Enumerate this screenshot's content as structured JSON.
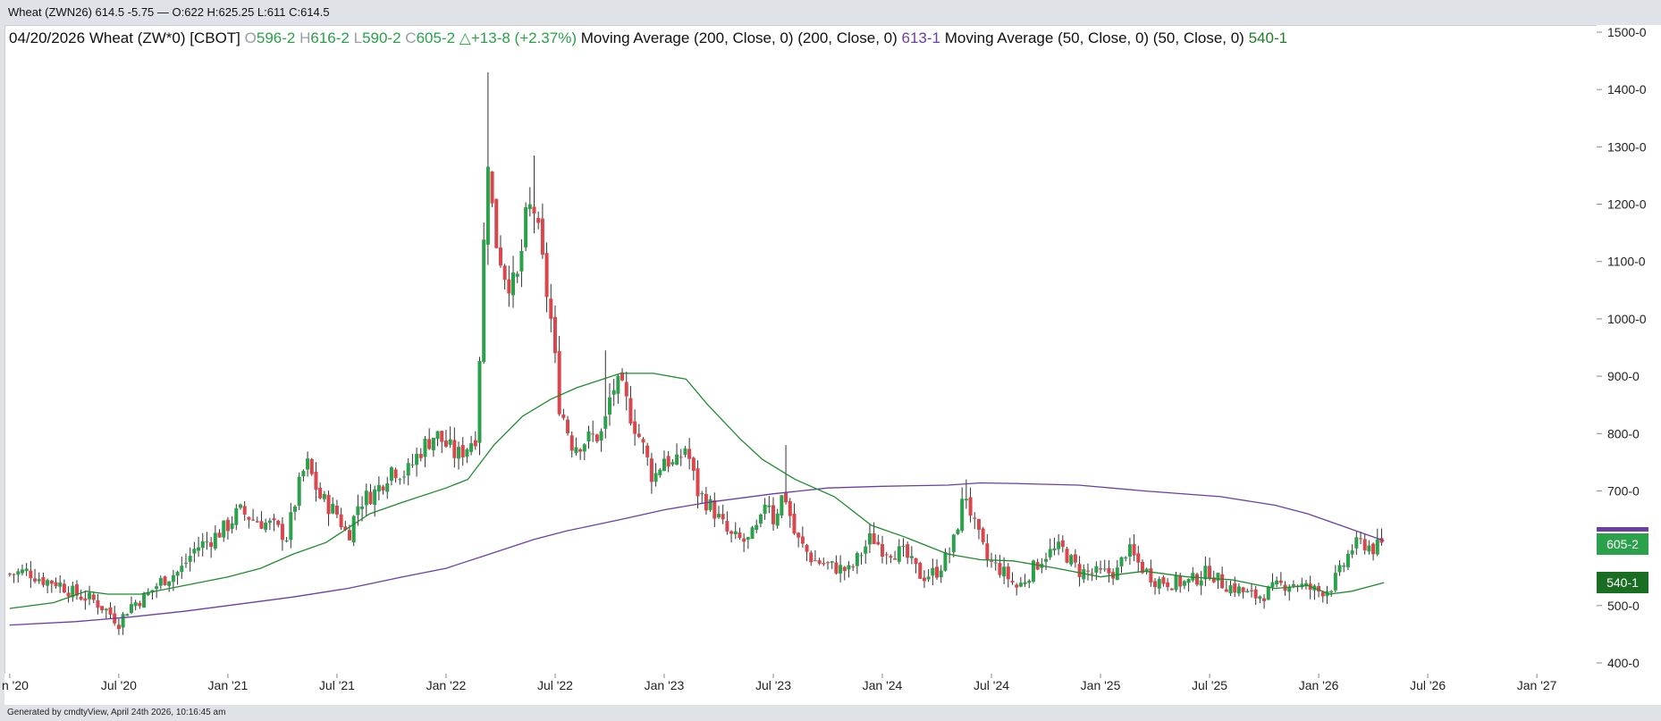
{
  "header": {
    "quote_line": "Wheat (ZWN26) 614.5 -5.75 — O:622 H:625.25 L:611 C:614.5"
  },
  "legend": {
    "date": "04/20/2026",
    "symbol": "Wheat (ZW*0) [CBOT]",
    "open_prefix": "O",
    "open": "596-2",
    "high_prefix": "H",
    "high": "616-2",
    "low_prefix": "L",
    "low": "590-2",
    "close_prefix": "C",
    "close": "605-2",
    "change": "△+13-8 (+2.37%)",
    "ma200_label": "Moving Average (200, Close, 0)  (200, Close, 0)",
    "ma200_value": "613-1",
    "ma50_label": "Moving Average (50, Close, 0)  (50, Close, 0)",
    "ma50_value": "540-1"
  },
  "footer": {
    "text": "Generated by cmdtyView, April 24th 2026, 10:16:45 am"
  },
  "colors": {
    "up": "#2aa14a",
    "down": "#d9464b",
    "ma200": "#6a3fa0",
    "ma50": "#1f8a2e",
    "price_tag": "#2aa14a",
    "ma50_tag": "#1a6e24",
    "ma200_tag": "#6a3fa0"
  },
  "chart_data": {
    "type": "candlestick",
    "title": "Wheat (ZW*0) [CBOT]",
    "x_ticks": [
      "n '20",
      "Jul '20",
      "Jan '21",
      "Jul '21",
      "Jan '22",
      "Jul '22",
      "Jan '23",
      "Jul '23",
      "Jan '24",
      "Jul '24",
      "Jan '25",
      "Jul '25",
      "Jan '26",
      "Jul '26",
      "Jan '27"
    ],
    "y_ticks": [
      "400-0",
      "500-0",
      "600-0",
      "700-0",
      "800-0",
      "900-0",
      "1000-0",
      "1100-0",
      "1200-0",
      "1300-0",
      "1400-0",
      "1500-0"
    ],
    "ylim": [
      400,
      1500
    ],
    "xlim": [
      2019.98,
      2027.27
    ],
    "price_tag": "605-2",
    "ma50_tag": "540-1",
    "close_path": [
      [
        2020.0,
        555
      ],
      [
        2020.08,
        560
      ],
      [
        2020.15,
        545
      ],
      [
        2020.22,
        540
      ],
      [
        2020.3,
        520
      ],
      [
        2020.38,
        510
      ],
      [
        2020.45,
        490
      ],
      [
        2020.5,
        470
      ],
      [
        2020.55,
        500
      ],
      [
        2020.62,
        515
      ],
      [
        2020.7,
        545
      ],
      [
        2020.78,
        560
      ],
      [
        2020.85,
        600
      ],
      [
        2020.92,
        615
      ],
      [
        2021.0,
        640
      ],
      [
        2021.05,
        665
      ],
      [
        2021.12,
        650
      ],
      [
        2021.2,
        640
      ],
      [
        2021.27,
        620
      ],
      [
        2021.32,
        700
      ],
      [
        2021.36,
        750
      ],
      [
        2021.42,
        690
      ],
      [
        2021.5,
        660
      ],
      [
        2021.55,
        620
      ],
      [
        2021.6,
        680
      ],
      [
        2021.68,
        700
      ],
      [
        2021.75,
        740
      ],
      [
        2021.82,
        730
      ],
      [
        2021.88,
        770
      ],
      [
        2021.95,
        800
      ],
      [
        2022.0,
        780
      ],
      [
        2022.05,
        760
      ],
      [
        2022.1,
        780
      ],
      [
        2022.14,
        800
      ],
      [
        2022.17,
        1100
      ],
      [
        2022.19,
        1300
      ],
      [
        2022.22,
        1150
      ],
      [
        2022.27,
        1080
      ],
      [
        2022.32,
        1050
      ],
      [
        2022.37,
        1180
      ],
      [
        2022.4,
        1200
      ],
      [
        2022.44,
        1100
      ],
      [
        2022.48,
        1000
      ],
      [
        2022.52,
        850
      ],
      [
        2022.58,
        780
      ],
      [
        2022.65,
        790
      ],
      [
        2022.72,
        800
      ],
      [
        2022.76,
        880
      ],
      [
        2022.8,
        880
      ],
      [
        2022.85,
        830
      ],
      [
        2022.9,
        780
      ],
      [
        2022.95,
        720
      ],
      [
        2023.0,
        760
      ],
      [
        2023.05,
        740
      ],
      [
        2023.1,
        780
      ],
      [
        2023.15,
        700
      ],
      [
        2023.22,
        670
      ],
      [
        2023.3,
        620
      ],
      [
        2023.38,
        610
      ],
      [
        2023.44,
        640
      ],
      [
        2023.47,
        700
      ],
      [
        2023.5,
        650
      ],
      [
        2023.55,
        700
      ],
      [
        2023.6,
        620
      ],
      [
        2023.68,
        580
      ],
      [
        2023.75,
        570
      ],
      [
        2023.85,
        560
      ],
      [
        2023.95,
        620
      ],
      [
        2024.0,
        600
      ],
      [
        2024.1,
        590
      ],
      [
        2024.18,
        550
      ],
      [
        2024.25,
        560
      ],
      [
        2024.32,
        600
      ],
      [
        2024.38,
        700
      ],
      [
        2024.42,
        640
      ],
      [
        2024.48,
        580
      ],
      [
        2024.55,
        560
      ],
      [
        2024.62,
        530
      ],
      [
        2024.68,
        560
      ],
      [
        2024.75,
        590
      ],
      [
        2024.82,
        600
      ],
      [
        2024.9,
        560
      ],
      [
        2025.0,
        555
      ],
      [
        2025.08,
        560
      ],
      [
        2025.12,
        600
      ],
      [
        2025.18,
        570
      ],
      [
        2025.25,
        545
      ],
      [
        2025.33,
        540
      ],
      [
        2025.4,
        540
      ],
      [
        2025.45,
        550
      ],
      [
        2025.5,
        560
      ],
      [
        2025.55,
        540
      ],
      [
        2025.62,
        530
      ],
      [
        2025.7,
        515
      ],
      [
        2025.75,
        520
      ],
      [
        2025.82,
        535
      ],
      [
        2025.88,
        540
      ],
      [
        2025.95,
        530
      ],
      [
        2026.0,
        525
      ],
      [
        2026.05,
        530
      ],
      [
        2026.1,
        560
      ],
      [
        2026.15,
        600
      ],
      [
        2026.2,
        610
      ],
      [
        2026.25,
        600
      ],
      [
        2026.3,
        605
      ]
    ],
    "ma200": [
      [
        2020.0,
        466
      ],
      [
        2020.3,
        472
      ],
      [
        2020.55,
        480
      ],
      [
        2020.8,
        490
      ],
      [
        2021.0,
        500
      ],
      [
        2021.3,
        515
      ],
      [
        2021.55,
        530
      ],
      [
        2021.8,
        550
      ],
      [
        2022.0,
        565
      ],
      [
        2022.2,
        590
      ],
      [
        2022.4,
        615
      ],
      [
        2022.55,
        630
      ],
      [
        2022.8,
        650
      ],
      [
        2023.0,
        667
      ],
      [
        2023.2,
        680
      ],
      [
        2023.5,
        695
      ],
      [
        2023.75,
        705
      ],
      [
        2024.0,
        708
      ],
      [
        2024.3,
        710
      ],
      [
        2024.45,
        714
      ],
      [
        2024.6,
        713
      ],
      [
        2024.9,
        710
      ],
      [
        2025.2,
        700
      ],
      [
        2025.55,
        690
      ],
      [
        2025.8,
        675
      ],
      [
        2025.95,
        660
      ],
      [
        2026.1,
        640
      ],
      [
        2026.3,
        613
      ]
    ],
    "ma50": [
      [
        2020.0,
        495
      ],
      [
        2020.2,
        505
      ],
      [
        2020.35,
        525
      ],
      [
        2020.45,
        520
      ],
      [
        2020.6,
        520
      ],
      [
        2020.8,
        535
      ],
      [
        2021.0,
        550
      ],
      [
        2021.15,
        565
      ],
      [
        2021.3,
        590
      ],
      [
        2021.45,
        610
      ],
      [
        2021.65,
        660
      ],
      [
        2021.8,
        680
      ],
      [
        2022.0,
        705
      ],
      [
        2022.1,
        720
      ],
      [
        2022.22,
        780
      ],
      [
        2022.35,
        830
      ],
      [
        2022.48,
        860
      ],
      [
        2022.6,
        880
      ],
      [
        2022.8,
        905
      ],
      [
        2022.95,
        905
      ],
      [
        2023.1,
        895
      ],
      [
        2023.2,
        850
      ],
      [
        2023.35,
        790
      ],
      [
        2023.45,
        755
      ],
      [
        2023.6,
        720
      ],
      [
        2023.78,
        690
      ],
      [
        2023.95,
        640
      ],
      [
        2024.1,
        620
      ],
      [
        2024.3,
        590
      ],
      [
        2024.45,
        580
      ],
      [
        2024.6,
        578
      ],
      [
        2024.8,
        565
      ],
      [
        2025.0,
        550
      ],
      [
        2025.2,
        560
      ],
      [
        2025.4,
        550
      ],
      [
        2025.6,
        545
      ],
      [
        2025.8,
        530
      ],
      [
        2025.95,
        535
      ],
      [
        2026.05,
        520
      ],
      [
        2026.15,
        525
      ],
      [
        2026.3,
        540
      ]
    ],
    "spike_highs": [
      {
        "x": 2022.19,
        "high": 1430
      },
      {
        "x": 2022.4,
        "high": 1285
      },
      {
        "x": 2022.74,
        "high": 945
      },
      {
        "x": 2023.55,
        "high": 780
      },
      {
        "x": 2024.38,
        "high": 720
      }
    ]
  }
}
